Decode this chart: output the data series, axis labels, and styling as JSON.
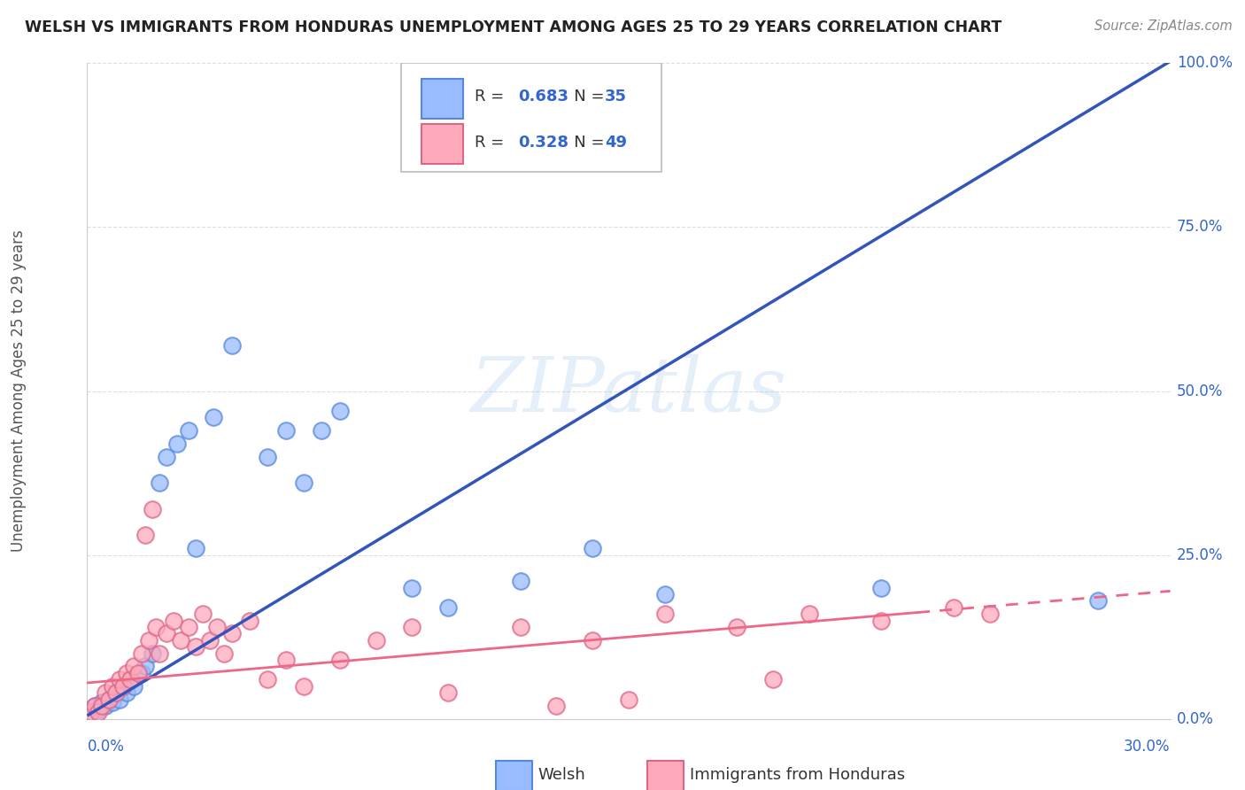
{
  "title": "WELSH VS IMMIGRANTS FROM HONDURAS UNEMPLOYMENT AMONG AGES 25 TO 29 YEARS CORRELATION CHART",
  "source": "Source: ZipAtlas.com",
  "ylabel_label": "Unemployment Among Ages 25 to 29 years",
  "legend_label1": "Welsh",
  "legend_label2": "Immigrants from Honduras",
  "r1": "0.683",
  "n1": "35",
  "r2": "0.328",
  "n2": "49",
  "color_blue_fill": "#99BBFF",
  "color_blue_edge": "#5588DD",
  "color_pink_fill": "#FFAABB",
  "color_pink_edge": "#DD6688",
  "color_blue_line": "#3355BB",
  "color_pink_line": "#EE6688",
  "color_text_blue": "#3366CC",
  "watermark": "ZIPatlas",
  "welsh_x": [
    0.001,
    0.002,
    0.003,
    0.004,
    0.005,
    0.006,
    0.007,
    0.008,
    0.009,
    0.01,
    0.011,
    0.012,
    0.013,
    0.015,
    0.016,
    0.018,
    0.02,
    0.022,
    0.025,
    0.028,
    0.03,
    0.035,
    0.04,
    0.05,
    0.055,
    0.06,
    0.065,
    0.07,
    0.09,
    0.1,
    0.12,
    0.14,
    0.16,
    0.22,
    0.28
  ],
  "welsh_y": [
    0.01,
    0.02,
    0.015,
    0.025,
    0.02,
    0.03,
    0.025,
    0.04,
    0.03,
    0.05,
    0.04,
    0.06,
    0.05,
    0.07,
    0.08,
    0.1,
    0.36,
    0.4,
    0.42,
    0.44,
    0.26,
    0.46,
    0.57,
    0.4,
    0.44,
    0.36,
    0.44,
    0.47,
    0.2,
    0.17,
    0.21,
    0.26,
    0.19,
    0.2,
    0.18
  ],
  "honduras_x": [
    0.001,
    0.002,
    0.003,
    0.004,
    0.005,
    0.006,
    0.007,
    0.008,
    0.009,
    0.01,
    0.011,
    0.012,
    0.013,
    0.014,
    0.015,
    0.016,
    0.017,
    0.018,
    0.019,
    0.02,
    0.022,
    0.024,
    0.026,
    0.028,
    0.03,
    0.032,
    0.034,
    0.036,
    0.038,
    0.04,
    0.045,
    0.05,
    0.055,
    0.06,
    0.07,
    0.08,
    0.09,
    0.1,
    0.12,
    0.14,
    0.16,
    0.18,
    0.2,
    0.22,
    0.24,
    0.13,
    0.15,
    0.19,
    0.25
  ],
  "honduras_y": [
    0.01,
    0.02,
    0.01,
    0.02,
    0.04,
    0.03,
    0.05,
    0.04,
    0.06,
    0.05,
    0.07,
    0.06,
    0.08,
    0.07,
    0.1,
    0.28,
    0.12,
    0.32,
    0.14,
    0.1,
    0.13,
    0.15,
    0.12,
    0.14,
    0.11,
    0.16,
    0.12,
    0.14,
    0.1,
    0.13,
    0.15,
    0.06,
    0.09,
    0.05,
    0.09,
    0.12,
    0.14,
    0.04,
    0.14,
    0.12,
    0.16,
    0.14,
    0.16,
    0.15,
    0.17,
    0.02,
    0.03,
    0.06,
    0.16
  ],
  "xmin": 0.0,
  "xmax": 0.3,
  "ymin": 0.0,
  "ymax": 1.0,
  "yticks": [
    0.0,
    0.25,
    0.5,
    0.75,
    1.0
  ],
  "ytick_labels": [
    "0.0%",
    "25.0%",
    "50.0%",
    "75.0%",
    "100.0%"
  ],
  "welsh_line_x": [
    0.0,
    0.3
  ],
  "welsh_line_y": [
    0.005,
    1.003
  ],
  "honduras_line_x": [
    0.0,
    0.3
  ],
  "honduras_line_y": [
    0.055,
    0.195
  ]
}
